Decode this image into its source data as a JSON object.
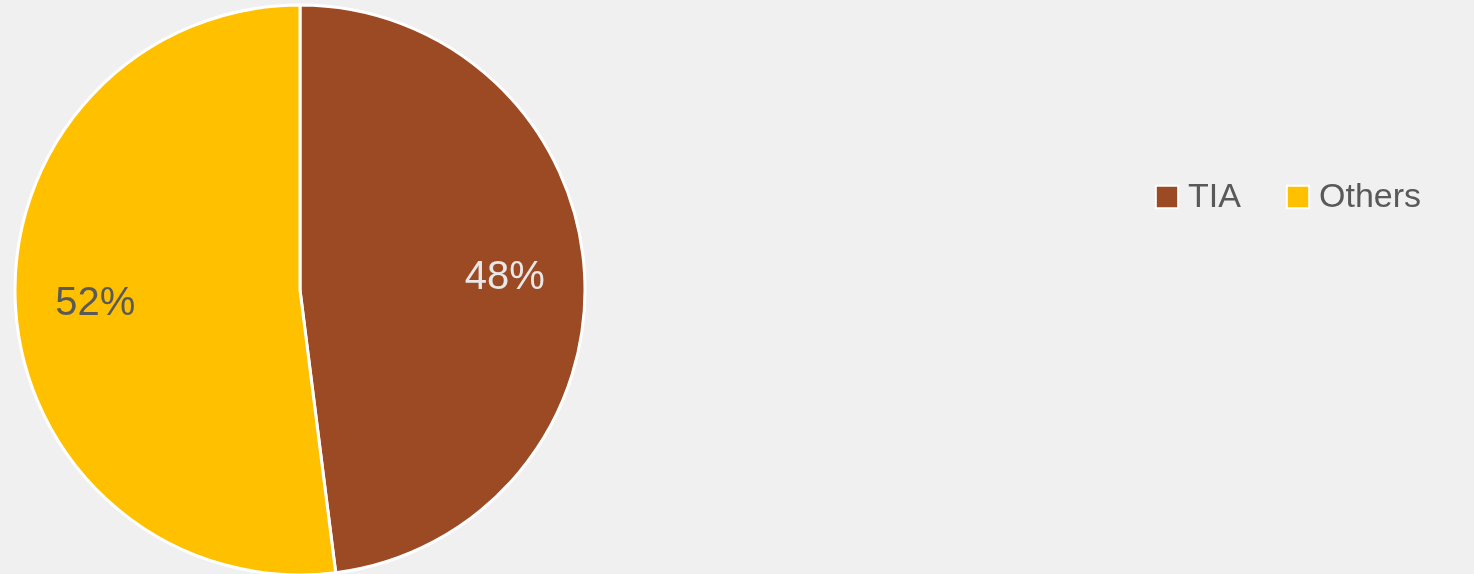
{
  "chart_data": {
    "type": "pie",
    "categories": [
      "TIA",
      "Others"
    ],
    "values": [
      48,
      52
    ],
    "colors": [
      "#9c4a24",
      "#ffc000"
    ],
    "value_labels": [
      "48%",
      "52%"
    ],
    "legend": "right"
  }
}
